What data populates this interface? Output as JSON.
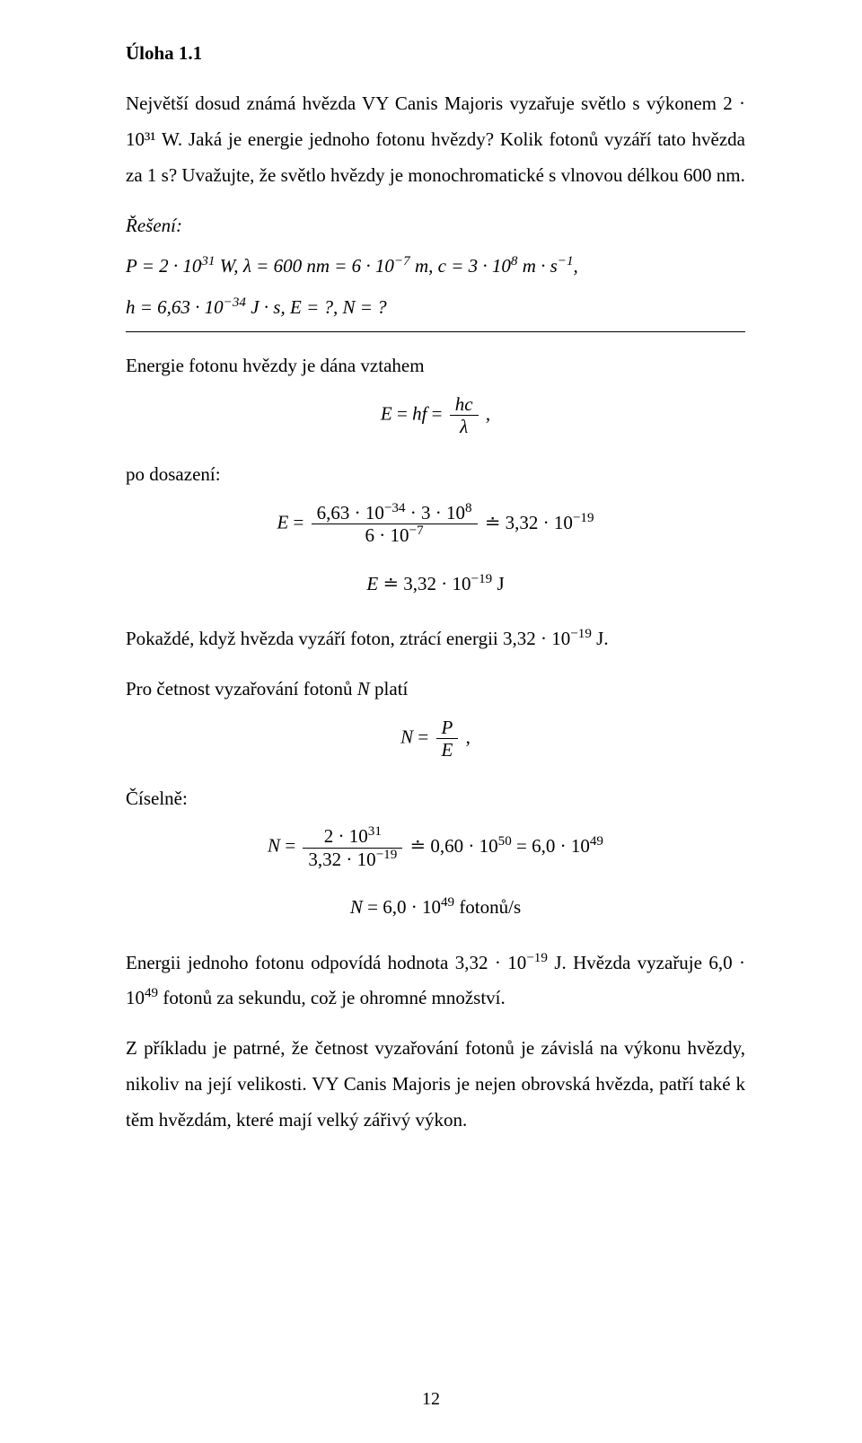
{
  "title": "Úloha 1.1",
  "para1": "Největší dosud známá hvězda VY Canis Majoris vyzařuje světlo s výkonem 2 · 10³¹ W. Jaká je energie jednoho fotonu hvězdy? Kolik fotonů vyzáří tato hvězda za 1 s? Uvažujte, že světlo hvězdy je monochromatické s vlnovou délkou 600 nm.",
  "reseni_label": "Řešení:",
  "given1_html": "<span class=\"mvar\">P</span> = 2 · 10<sup>31</sup> W, <span class=\"mvar\">λ</span> = 600 nm = 6 · 10<sup>−7</sup> m, <span class=\"mvar\">c</span> = 3 · 10<sup>8</sup> m · s<sup>−1</sup>,",
  "given2_html": "<span class=\"mvar\">h</span> = 6,63 · 10<sup>−34</sup> J · s, <span class=\"mvar\">E</span> = ?, <span class=\"mvar\">N</span> = ?",
  "energy_text": "Energie fotonu hvězdy je dána vztahem",
  "eq_E_hf": {
    "prefix_html": "<span class=\"mvar\">E</span> = <span class=\"mvar\">hf</span> = ",
    "num_html": "<span class=\"mvar\">hc</span>",
    "den_html": "<span class=\"mvar\">λ</span>",
    "suffix": " ,"
  },
  "po_dosazeni": "po dosazení:",
  "eq_E_sub": {
    "prefix_html": "<span class=\"mvar\">E</span> = ",
    "num_html": "6,63 · 10<sup>−34</sup> · 3 · 10<sup>8</sup>",
    "den_html": "6 · 10<sup>−7</sup>",
    "suffix_html": " ≐ 3,32 · 10<sup>−19</sup>"
  },
  "eq_E_result_html": "<span class=\"mvar\">E</span> ≐ 3,32 · 10<sup>−19</sup> J",
  "pokazde_html": "Pokaždé, když hvězda vyzáří foton, ztrácí energii 3,32 · 10<sup>−19</sup> J.",
  "cetnost_html": "Pro četnost vyzařování fotonů <span class=\"mvar\">N</span> platí",
  "eq_N_PE": {
    "prefix_html": "<span class=\"mvar\">N</span> = ",
    "num_html": "<span class=\"mvar\">P</span>",
    "den_html": "<span class=\"mvar\">E</span>",
    "suffix": " ,"
  },
  "ciselne": "Číselně:",
  "eq_N_sub": {
    "prefix_html": "<span class=\"mvar\">N</span> = ",
    "num_html": "2 · 10<sup>31</sup>",
    "den_html": "3,32 · 10<sup>−19</sup>",
    "suffix_html": " ≐ 0,60 · 10<sup>50</sup> = 6,0 · 10<sup>49</sup>"
  },
  "eq_N_result_html": "<span class=\"mvar\">N</span> = 6,0 · 10<sup>49</sup> fotonů/s",
  "conclusion1_html": "Energii jednoho fotonu odpovídá hodnota 3,32 · 10<sup>−19</sup> J. Hvězda vyzařuje 6,0 · 10<sup>49</sup> fotonů za sekundu, což je ohromné množství.",
  "conclusion2": "Z příkladu je patrné, že četnost vyzařování fotonů je závislá na výkonu hvězdy, nikoliv na její velikosti. VY Canis Majoris je nejen obrovská hvězda, patří také k těm hvězdám, které mají velký zářivý výkon.",
  "page_number": "12",
  "colors": {
    "text": "#000000",
    "rule": "#000000",
    "background": "#ffffff"
  },
  "typography": {
    "font_family": "Times New Roman",
    "body_fontsize_pt": 12,
    "line_height": 1.9
  }
}
